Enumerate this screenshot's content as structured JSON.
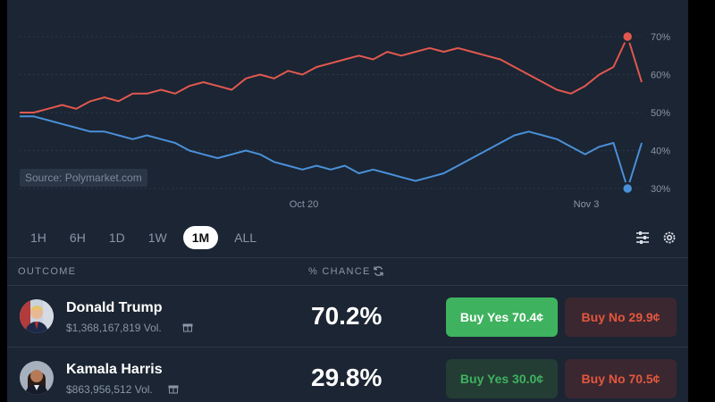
{
  "chart_data": {
    "type": "line",
    "source_label": "Source: Polymarket.com",
    "x_labels": [
      "Oct 20",
      "Nov 3"
    ],
    "y_ticks": [
      "70%",
      "60%",
      "50%",
      "40%",
      "30%"
    ],
    "ylim": [
      30,
      70
    ],
    "series": [
      {
        "color": "#e2584f",
        "values": [
          50,
          50,
          51,
          52,
          51,
          53,
          54,
          53,
          55,
          55,
          56,
          55,
          57,
          58,
          57,
          56,
          59,
          60,
          59,
          61,
          60,
          62,
          63,
          64,
          65,
          64,
          66,
          65,
          66,
          67,
          66,
          67,
          66,
          65,
          64,
          62,
          60,
          58,
          56,
          55,
          57,
          60,
          62,
          70,
          58
        ]
      },
      {
        "color": "#4a90d9",
        "values": [
          49,
          49,
          48,
          47,
          46,
          45,
          45,
          44,
          43,
          44,
          43,
          42,
          40,
          39,
          38,
          39,
          40,
          39,
          37,
          36,
          35,
          36,
          35,
          36,
          34,
          35,
          34,
          33,
          32,
          33,
          34,
          36,
          38,
          40,
          42,
          44,
          45,
          44,
          43,
          41,
          39,
          41,
          42,
          30,
          42
        ]
      }
    ]
  },
  "ranges": [
    "1H",
    "6H",
    "1D",
    "1W",
    "1M",
    "ALL"
  ],
  "active_range": "1M",
  "table": {
    "col_outcome": "OUTCOME",
    "col_chance": "% CHANCE"
  },
  "outcomes": [
    {
      "name": "Donald Trump",
      "volume": "$1,368,167,819 Vol.",
      "chance": "70.2%",
      "yes": "Buy Yes 70.4¢",
      "no": "Buy No 29.9¢"
    },
    {
      "name": "Kamala Harris",
      "volume": "$863,956,512 Vol.",
      "chance": "29.8%",
      "yes": "Buy Yes 30.0¢",
      "no": "Buy No 70.5¢"
    }
  ]
}
